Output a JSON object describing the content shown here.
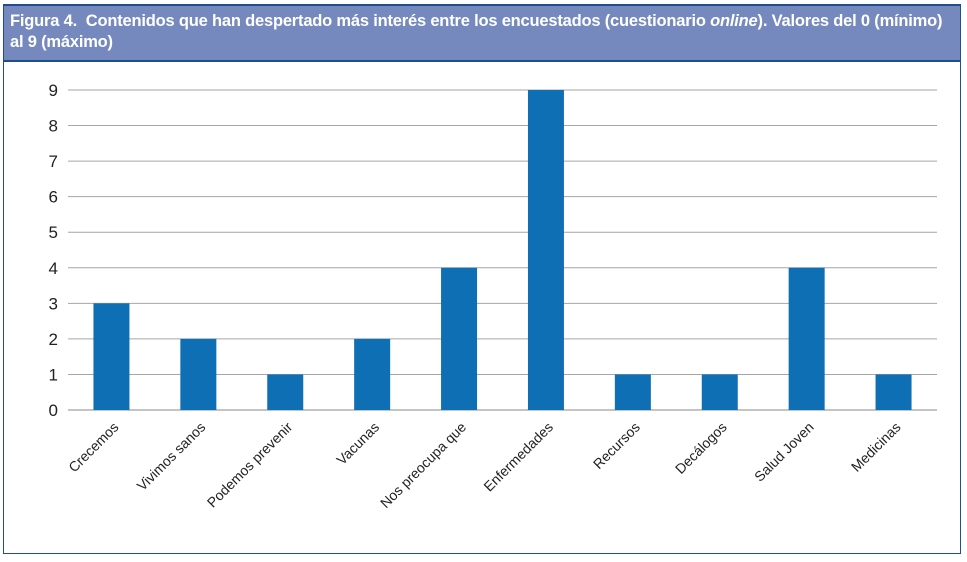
{
  "figure": {
    "title_prefix": "Figura 4.",
    "title_main": "Contenidos que han despertado más interés entre los encuestados (cuestionario ",
    "title_italic": "online",
    "title_end": "). Valores del 0 (mínimo) al 9 (máximo)"
  },
  "colors": {
    "bar": "#0f6fb5",
    "header": "#7589be",
    "border": "#1f4e8c",
    "grid": "#999999"
  },
  "chart_data": {
    "type": "bar",
    "categories": [
      "Crecemos",
      "Vivimos sanos",
      "Podemos prevenir",
      "Vacunas",
      "Nos preocupa que",
      "Enfermedades",
      "Recursos",
      "Decálogos",
      "Salud Joven",
      "Medicinas"
    ],
    "values": [
      3,
      2,
      1,
      2,
      4,
      9,
      1,
      1,
      4,
      1
    ],
    "yticks": [
      "0",
      "1",
      "2",
      "3",
      "4",
      "5",
      "6",
      "7",
      "8",
      "9"
    ],
    "ylim": [
      0,
      9
    ],
    "grid": true,
    "legend": "none"
  }
}
